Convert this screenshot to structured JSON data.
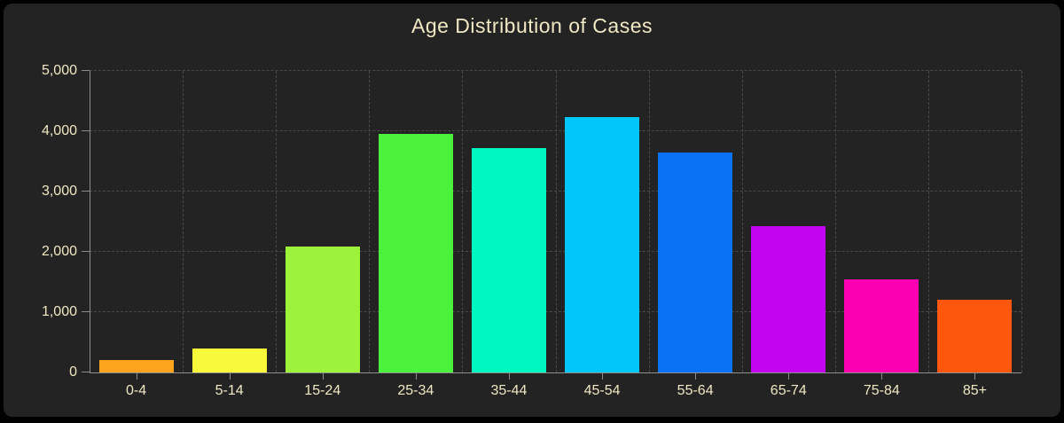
{
  "title": "Age Distribution of Cases",
  "theme": {
    "page_background": "#000000",
    "card_background": "#232323",
    "text_color": "#efe8c2",
    "grid_color": "#4a4a4a",
    "axis_color": "#8e8e8e"
  },
  "chart_data": {
    "type": "bar",
    "title": "Age Distribution of Cases",
    "categories": [
      "0-4",
      "5-14",
      "15-24",
      "25-34",
      "35-44",
      "45-54",
      "55-64",
      "65-74",
      "75-84",
      "85+"
    ],
    "values": [
      200,
      400,
      2090,
      3950,
      3720,
      4240,
      3650,
      2430,
      1550,
      1200
    ],
    "bar_colors": [
      "#ffa41c",
      "#f9f93b",
      "#9df23c",
      "#4bf23c",
      "#00f8c0",
      "#00c7f8",
      "#0a73f5",
      "#c204f0",
      "#fb00b2",
      "#fc570d"
    ],
    "xlabel": "",
    "ylabel": "",
    "ylim": [
      0,
      5000
    ],
    "y_tick_values": [
      0,
      1000,
      2000,
      3000,
      4000,
      5000
    ],
    "y_tick_labels": [
      "0",
      "1,000",
      "2,000",
      "3,000",
      "4,000",
      "5,000"
    ],
    "grid": true,
    "legend": false
  }
}
